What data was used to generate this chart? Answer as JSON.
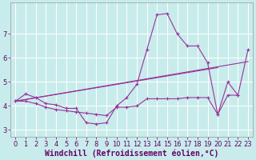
{
  "bg_color": "#c8ecec",
  "grid_color": "#ffffff",
  "line_color": "#993399",
  "xlabel": "Windchill (Refroidissement éolien,°C)",
  "xlabel_fontsize": 7.0,
  "xlim": [
    -0.5,
    23.5
  ],
  "ylim": [
    2.7,
    8.3
  ],
  "xticks": [
    0,
    1,
    2,
    3,
    4,
    5,
    6,
    7,
    8,
    9,
    10,
    11,
    12,
    13,
    14,
    15,
    16,
    17,
    18,
    19,
    20,
    21,
    22,
    23
  ],
  "yticks": [
    3,
    4,
    5,
    6,
    7
  ],
  "lines": [
    {
      "x": [
        0,
        1,
        2,
        3,
        4,
        5,
        6,
        7,
        8,
        9,
        10,
        11,
        12,
        13,
        14,
        15,
        16,
        17,
        18,
        19,
        20,
        21,
        22,
        23
      ],
      "y": [
        4.2,
        4.5,
        4.35,
        4.1,
        4.05,
        3.9,
        3.9,
        3.3,
        3.25,
        3.3,
        4.0,
        4.35,
        4.9,
        6.35,
        7.8,
        7.85,
        7.0,
        6.5,
        6.5,
        5.8,
        3.65,
        5.0,
        4.45,
        6.35
      ]
    },
    {
      "x": [
        0,
        23
      ],
      "y": [
        4.2,
        5.85
      ]
    },
    {
      "x": [
        0,
        20
      ],
      "y": [
        4.2,
        5.6
      ]
    },
    {
      "x": [
        0,
        1,
        2,
        3,
        4,
        5,
        6,
        7,
        8,
        9,
        10,
        11,
        12,
        13,
        14,
        15,
        16,
        17,
        18,
        19,
        20,
        21,
        22,
        23
      ],
      "y": [
        4.2,
        4.2,
        4.1,
        3.95,
        3.85,
        3.8,
        3.75,
        3.7,
        3.65,
        3.6,
        3.95,
        3.95,
        4.0,
        4.3,
        4.3,
        4.3,
        4.3,
        4.35,
        4.35,
        4.35,
        3.65,
        4.45,
        4.45,
        null
      ]
    }
  ],
  "tick_fontsize": 6.0,
  "tick_color": "#660066"
}
